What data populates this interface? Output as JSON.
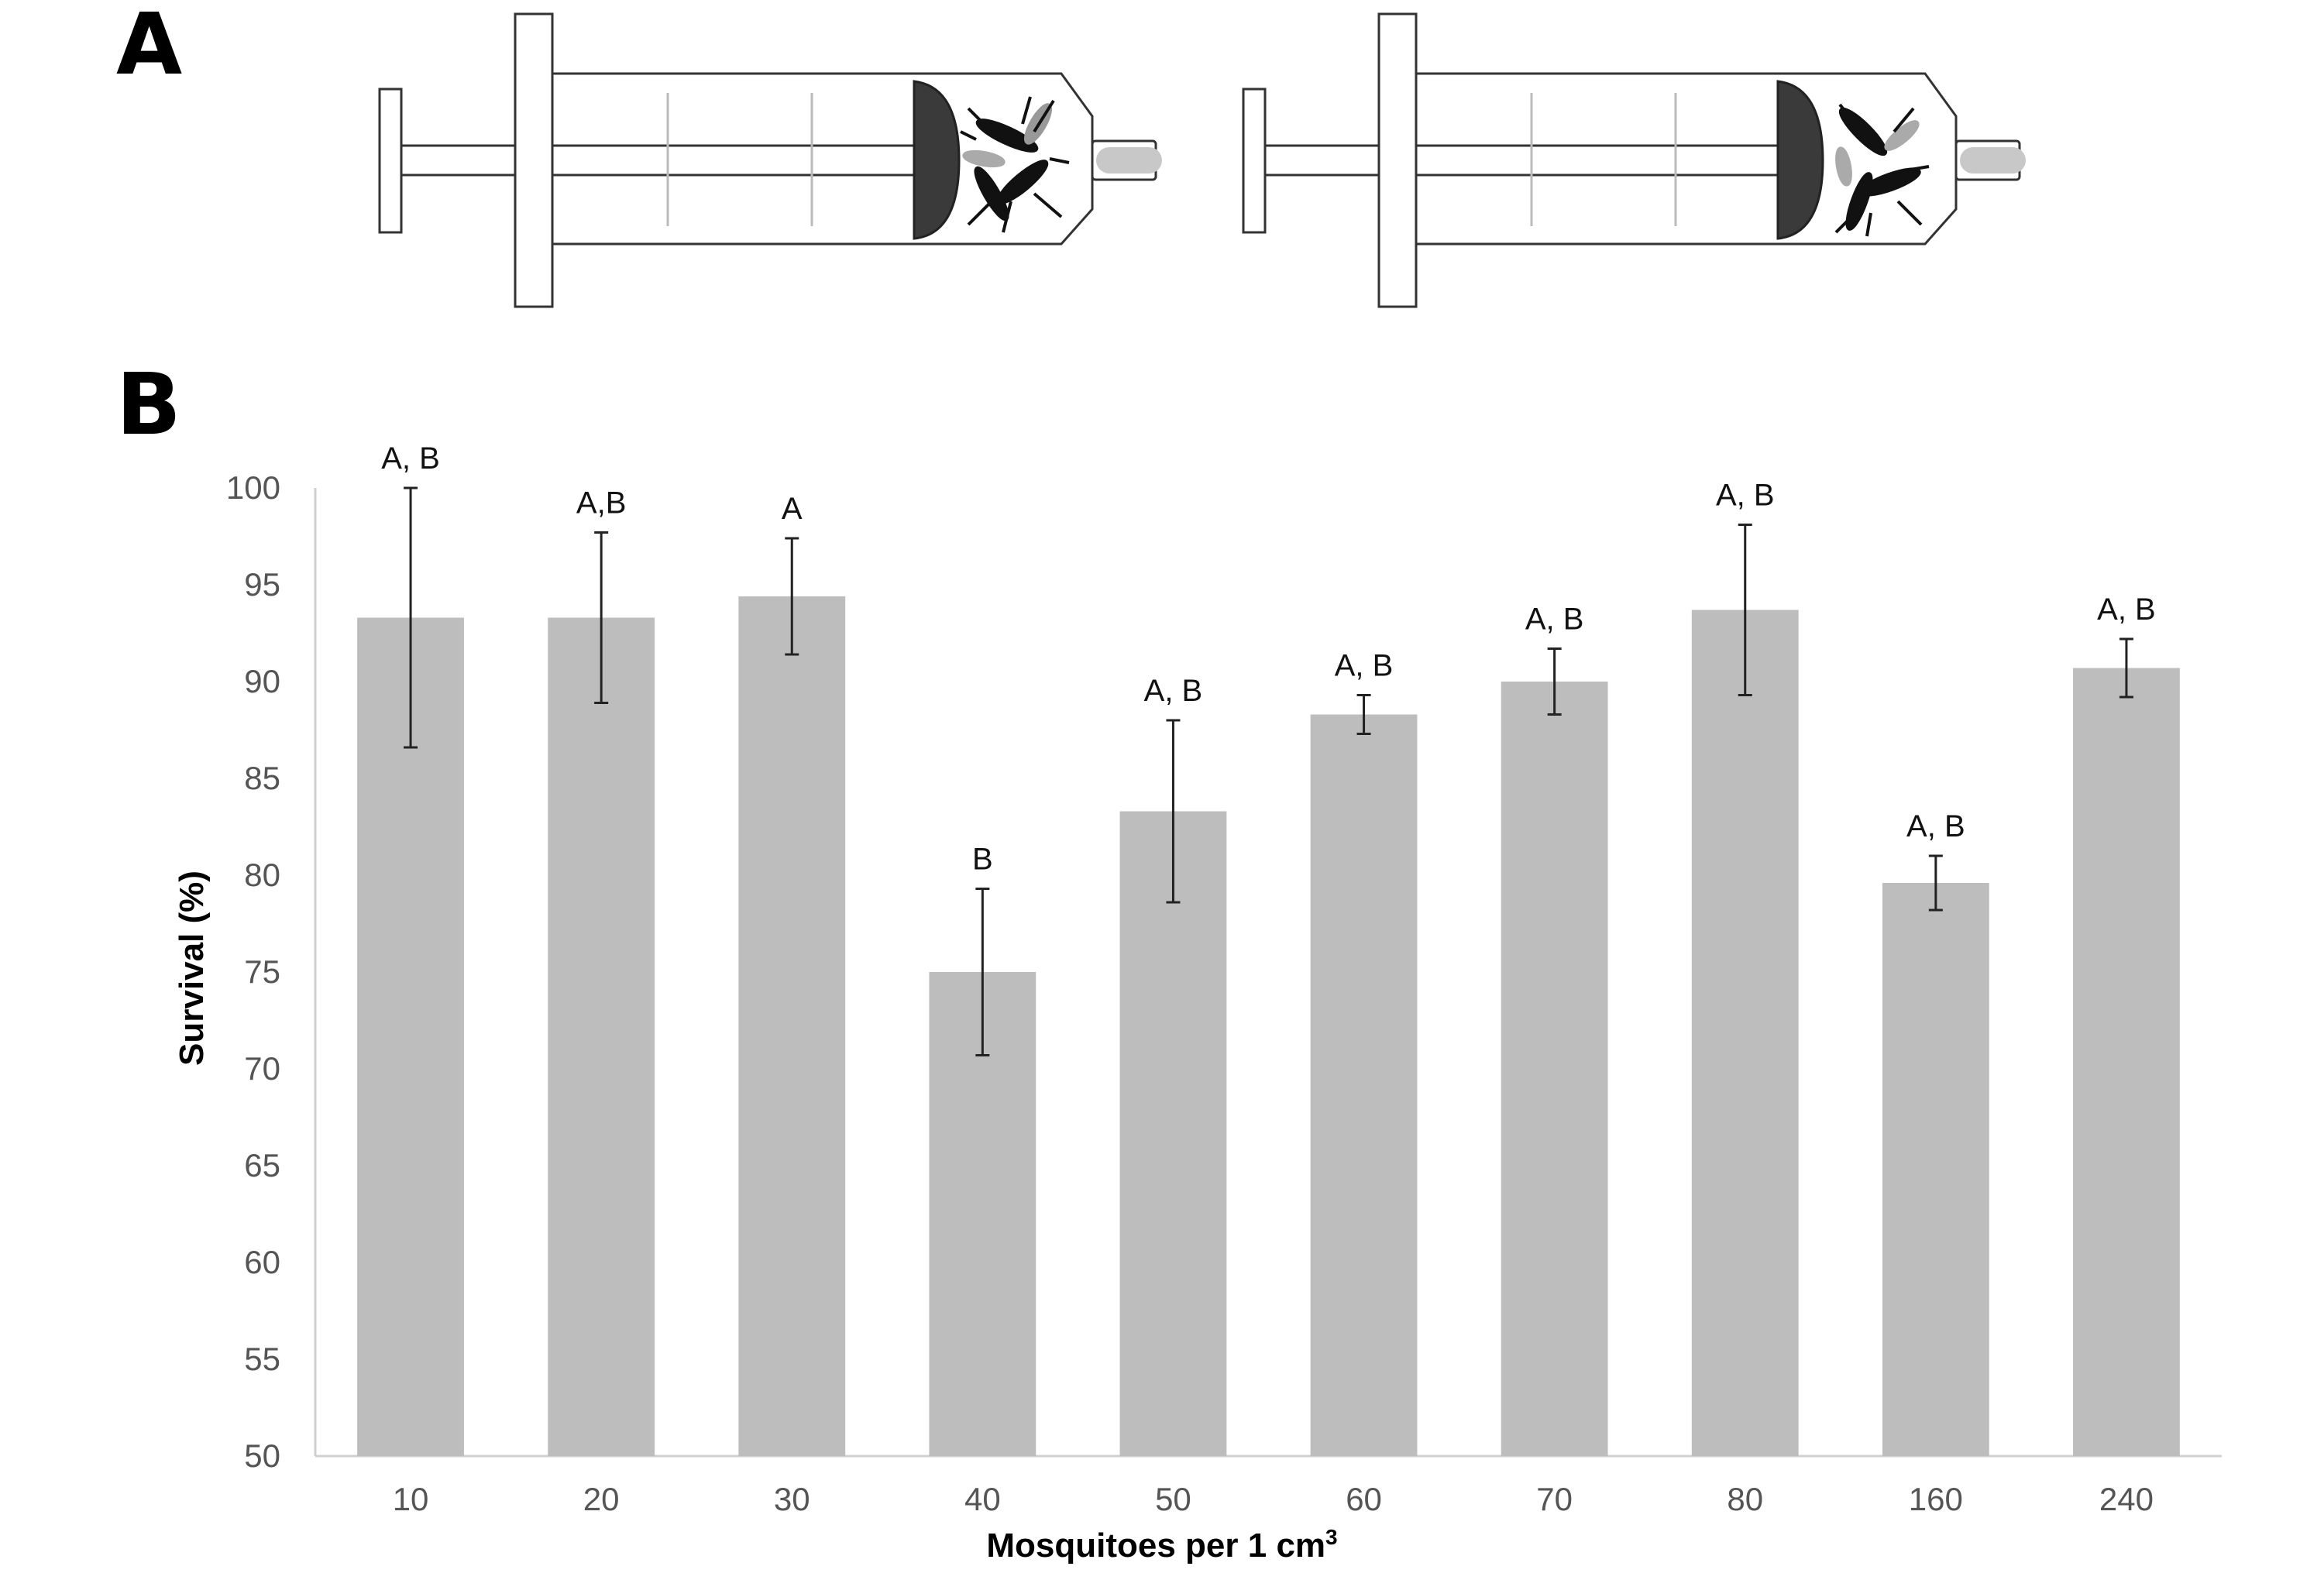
{
  "panels": {
    "a_label": "A",
    "b_label": "B"
  },
  "chart_data": {
    "type": "bar",
    "xlabel_main": "Mosquitoes per 1 cm",
    "xlabel_sup": "3",
    "ylabel": "Survival (%)",
    "ylim": [
      50,
      100
    ],
    "yticks": [
      50,
      55,
      60,
      65,
      70,
      75,
      80,
      85,
      90,
      95,
      100
    ],
    "grid": false,
    "categories": [
      "10",
      "20",
      "30",
      "40",
      "50",
      "60",
      "70",
      "80",
      "160",
      "240"
    ],
    "values": [
      93.3,
      93.3,
      94.4,
      75.0,
      83.3,
      88.3,
      90.0,
      93.7,
      79.6,
      90.7
    ],
    "error": [
      6.7,
      4.4,
      3.0,
      4.3,
      4.7,
      1.0,
      1.7,
      4.4,
      1.4,
      1.5
    ],
    "significance_labels": [
      "A, B",
      "A,B",
      "A",
      "B",
      "A, B",
      "A, B",
      "A, B",
      "A, B",
      "A, B",
      "A, B"
    ],
    "bar_color": "#bdbdbd"
  }
}
